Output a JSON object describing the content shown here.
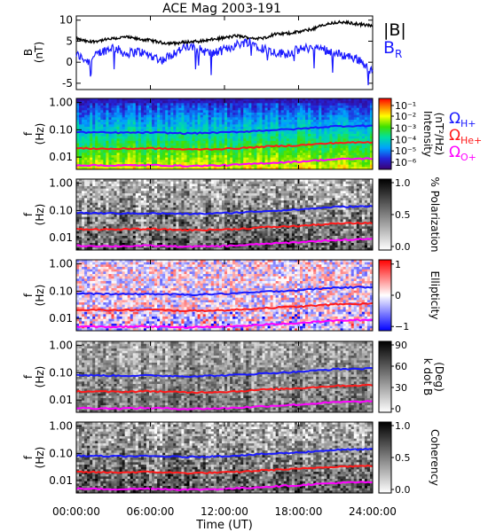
{
  "title": "ACE Mag 2003-191",
  "xaxis": {
    "label": "Time (UT)",
    "ticks": [
      "00:00:00",
      "06:00:00",
      "12:00:00",
      "18:00:00",
      "24:00:00"
    ],
    "range_hours": [
      0,
      24
    ]
  },
  "colors": {
    "b_mag": "#000000",
    "b_r": "#1a1aff",
    "h_plus": "#1a1aff",
    "he_plus": "#ff1a1a",
    "o_plus": "#ff00ff"
  },
  "chart_data": [
    {
      "type": "line",
      "panel": "field",
      "ylabel": "B\n(nT)",
      "ylim": [
        -6.5,
        11
      ],
      "yticks": [
        "10",
        "5",
        "0",
        "-5"
      ],
      "legend": [
        "|B|",
        "B_R"
      ],
      "x": [
        0,
        1,
        2,
        3,
        4,
        5,
        6,
        7,
        8,
        9,
        10,
        11,
        12,
        13,
        14,
        15,
        16,
        17,
        18,
        19,
        20,
        21,
        22,
        23,
        24
      ],
      "series": [
        {
          "name": "|B|",
          "values": [
            5.6,
            4.8,
            5.2,
            5.6,
            6.0,
            5.5,
            5.2,
            4.6,
            4.5,
            4.8,
            5.0,
            5.4,
            5.8,
            6.3,
            5.8,
            5.6,
            6.6,
            6.8,
            7.2,
            7.8,
            8.8,
            9.5,
            9.4,
            9.0,
            8.6
          ]
        },
        {
          "name": "B_R",
          "values": [
            1.8,
            0.2,
            2.5,
            3.6,
            2.0,
            2.6,
            1.6,
            0.5,
            2.4,
            3.6,
            3.0,
            2.0,
            3.0,
            4.2,
            5.0,
            3.5,
            2.4,
            2.0,
            3.0,
            3.5,
            3.2,
            2.0,
            1.5,
            0.5,
            -2.5
          ]
        }
      ]
    },
    {
      "type": "heatmap",
      "panel": "intensity",
      "ylabel": "f\n(Hz)",
      "yticks": [
        "1.00",
        "0.10",
        "0.01"
      ],
      "colorbar": {
        "label": "Intensity\n(nT²/Hz)",
        "ticks": [
          "10⁻¹",
          "10⁻²",
          "10⁻³",
          "10⁻⁴",
          "10⁻⁵",
          "10⁻⁶"
        ],
        "scale": "log"
      }
    },
    {
      "type": "heatmap",
      "panel": "polarization",
      "ylabel": "f\n(Hz)",
      "yticks": [
        "1.00",
        "0.10",
        "0.01"
      ],
      "colorbar": {
        "label": "% Polarization",
        "ticks": [
          "1.0",
          "0.5",
          "0.0"
        ]
      }
    },
    {
      "type": "heatmap",
      "panel": "ellipticity",
      "ylabel": "f\n(Hz)",
      "yticks": [
        "1.00",
        "0.10",
        "0.01"
      ],
      "colorbar": {
        "label": "Ellipticity",
        "ticks": [
          "1",
          "0",
          "−1"
        ]
      }
    },
    {
      "type": "heatmap",
      "panel": "kdotb",
      "ylabel": "f\n(Hz)",
      "yticks": [
        "1.00",
        "0.10",
        "0.01"
      ],
      "colorbar": {
        "label": "k dot B\n(Deg)",
        "ticks": [
          "90",
          "60",
          "30",
          "0"
        ]
      }
    },
    {
      "type": "heatmap",
      "panel": "coherency",
      "ylabel": "f\n(Hz)",
      "yticks": [
        "1.00",
        "0.10",
        "0.01"
      ],
      "colorbar": {
        "label": "Coherency",
        "ticks": [
          "1.0",
          "0.5",
          "0.0"
        ]
      }
    },
    {
      "type": "line",
      "panel": "gyrofrequencies",
      "legend": [
        "Ω_H+",
        "Ω_He+",
        "Ω_O+"
      ],
      "x": [
        0,
        3,
        6,
        9,
        12,
        14,
        15,
        18,
        21,
        24
      ],
      "series": [
        {
          "name": "Ω_H+",
          "values_hz": [
            0.082,
            0.078,
            0.079,
            0.074,
            0.08,
            0.088,
            0.094,
            0.108,
            0.135,
            0.142
          ]
        },
        {
          "name": "Ω_He+",
          "values_hz": [
            0.021,
            0.02,
            0.021,
            0.019,
            0.02,
            0.022,
            0.024,
            0.027,
            0.033,
            0.035
          ]
        },
        {
          "name": "Ω_O+",
          "values_hz": [
            0.0051,
            0.0049,
            0.0051,
            0.0047,
            0.005,
            0.0055,
            0.0059,
            0.0068,
            0.0083,
            0.0089
          ]
        }
      ]
    }
  ]
}
